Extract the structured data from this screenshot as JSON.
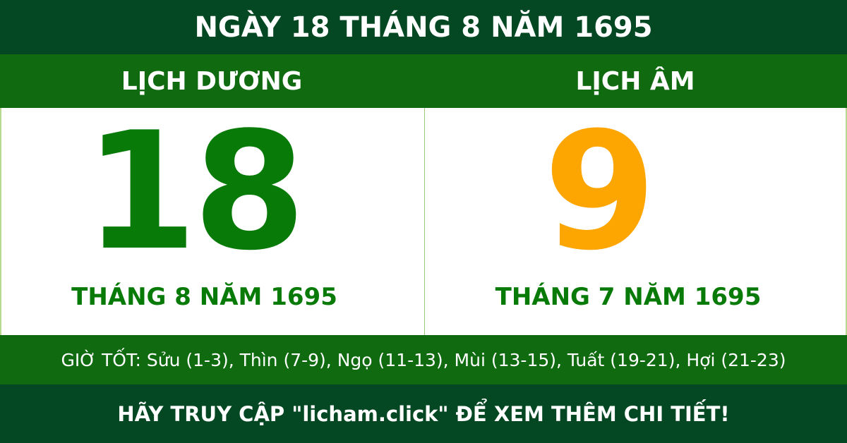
{
  "title": "NGÀY 18 THÁNG 8 NĂM 1695",
  "solar": {
    "heading": "LỊCH DƯƠNG",
    "day": "18",
    "month_year": "THÁNG 8 NĂM 1695"
  },
  "lunar": {
    "heading": "LỊCH ÂM",
    "day": "9",
    "month_year": "THÁNG 7 NĂM 1695"
  },
  "good_hours": "GIỜ TỐT: Sửu (1-3), Thìn (7-9), Ngọ (11-13), Mùi (13-15), Tuất (19-21), Hợi (21-23)",
  "cta": "HÃY TRUY CẬP \"licham.click\" ĐỂ XEM THÊM CHI TIẾT!",
  "colors": {
    "dark_green": "#034822",
    "green": "#0f6a10",
    "solar_day": "#087a08",
    "lunar_day": "#fda500"
  }
}
